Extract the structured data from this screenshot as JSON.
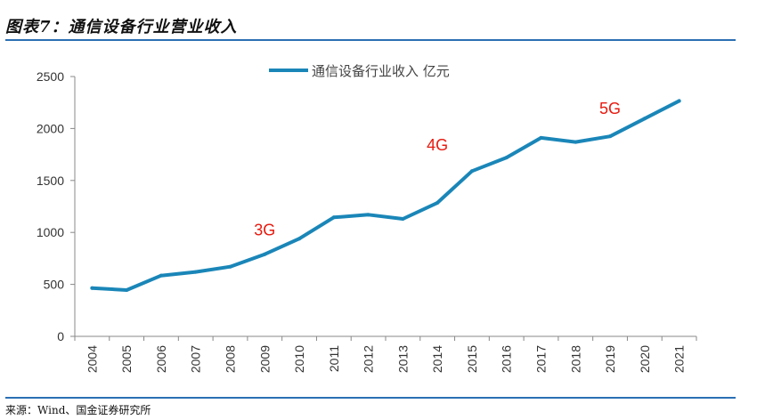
{
  "header": {
    "title": "图表7：通信设备行业营业收入"
  },
  "footer": {
    "source": "来源：Wind、国金证券研究所"
  },
  "colors": {
    "line": "#1a86b8",
    "rule": "#2b6fb4",
    "annotation": "#e8190e",
    "axis": "#888888"
  },
  "chart_data": {
    "type": "line",
    "title": "",
    "xlabel": "",
    "ylabel": "",
    "categories": [
      "2004",
      "2005",
      "2006",
      "2007",
      "2008",
      "2009",
      "2010",
      "2011",
      "2012",
      "2013",
      "2014",
      "2015",
      "2016",
      "2017",
      "2018",
      "2019",
      "2020",
      "2021"
    ],
    "series": [
      {
        "name": "通信设备行业收入 亿元",
        "values": [
          465,
          445,
          585,
          620,
          670,
          790,
          940,
          1145,
          1170,
          1130,
          1285,
          1590,
          1720,
          1910,
          1870,
          1925,
          2095,
          2265
        ]
      }
    ],
    "ylim": [
      0,
      2500
    ],
    "yticks": [
      0,
      500,
      1000,
      1500,
      2000,
      2500
    ],
    "grid": false,
    "legend": "top",
    "annotations": [
      {
        "label": "3G",
        "x": "2009",
        "y": 970
      },
      {
        "label": "4G",
        "x": "2014",
        "y": 1790
      },
      {
        "label": "5G",
        "x": "2019",
        "y": 2140
      }
    ]
  }
}
